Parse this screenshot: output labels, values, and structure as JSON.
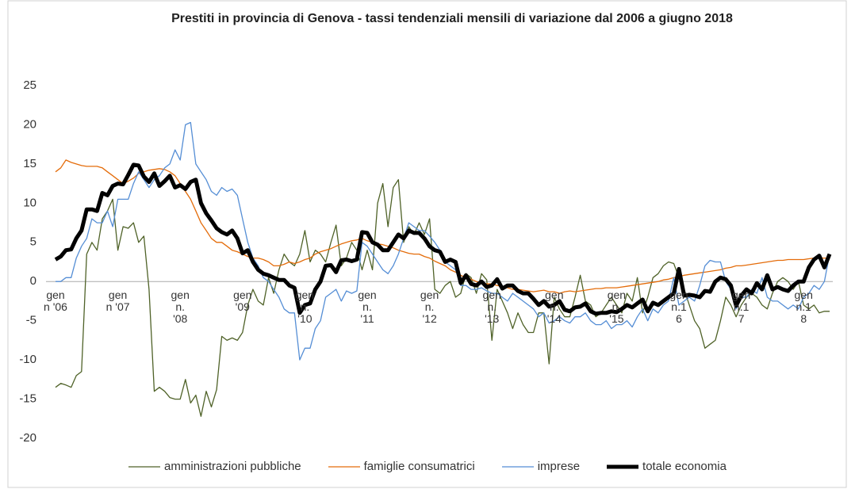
{
  "chart_data": {
    "type": "line",
    "title": "Prestiti in provincia di Genova - tassi tendenziali mensili di variazione dal 2006 a giugno 2018",
    "categories": [
      "gen\nn '06",
      null,
      null,
      null,
      null,
      null,
      null,
      null,
      null,
      null,
      null,
      null,
      "gen\nn '07",
      null,
      null,
      null,
      null,
      null,
      null,
      null,
      null,
      null,
      null,
      null,
      "gen\nn.\n'08",
      null,
      null,
      null,
      null,
      null,
      null,
      null,
      null,
      null,
      null,
      null,
      "gen\n'09",
      null,
      null,
      null,
      null,
      null,
      null,
      null,
      null,
      null,
      null,
      null,
      "gen\nn.\n'10",
      null,
      null,
      null,
      null,
      null,
      null,
      null,
      null,
      null,
      null,
      null,
      "gen\nn.\n'11",
      null,
      null,
      null,
      null,
      null,
      null,
      null,
      null,
      null,
      null,
      null,
      "gen\nn.\n'12",
      null,
      null,
      null,
      null,
      null,
      null,
      null,
      null,
      null,
      null,
      null,
      "gen\nn.\n'13",
      null,
      null,
      null,
      null,
      null,
      null,
      null,
      null,
      null,
      null,
      null,
      "gen\nn.\n'14",
      null,
      null,
      null,
      null,
      null,
      null,
      null,
      null,
      null,
      null,
      null,
      "gen\nn.\n'15",
      null,
      null,
      null,
      null,
      null,
      null,
      null,
      null,
      null,
      null,
      null,
      "gen\nn.1\n6",
      null,
      null,
      null,
      null,
      null,
      null,
      null,
      null,
      null,
      null,
      null,
      "gen\nn.1\n7",
      null,
      null,
      null,
      null,
      null,
      null,
      null,
      null,
      null,
      null,
      null,
      "gen\nn.1\n8",
      null,
      null,
      null,
      null,
      null
    ],
    "series": [
      {
        "name": "amministrazioni pubbliche",
        "color": "#4f6228",
        "width": 1.3,
        "values": [
          -13.5,
          -13,
          -13.2,
          -13.5,
          -12,
          -11.5,
          3.5,
          5,
          4,
          8,
          9,
          10.5,
          4,
          7,
          6.8,
          7.5,
          5,
          5.8,
          -1,
          -14,
          -13.5,
          -14,
          -14.8,
          -15,
          -15,
          -12.5,
          -15.5,
          -14.5,
          -17.2,
          -14,
          -16,
          -13.8,
          -7,
          -7.5,
          -7.2,
          -7.5,
          -6.5,
          -3,
          -1,
          -2.5,
          -3,
          0.5,
          -1.5,
          1.5,
          3.5,
          2.5,
          2,
          3.5,
          6.5,
          2.5,
          4,
          3.5,
          2.5,
          5,
          7.2,
          2,
          3,
          5,
          4,
          1.5,
          4,
          1.5,
          10,
          12.5,
          7,
          12,
          13,
          5,
          7,
          6,
          7.5,
          6,
          8,
          -1,
          -1.5,
          -0.5,
          0,
          -2,
          -1.5,
          1,
          0.5,
          -1.5,
          1,
          0.2,
          -7.5,
          -1,
          -2.5,
          -4,
          -6,
          -4,
          -5.5,
          -6.5,
          -6.5,
          -4,
          -4,
          -10.5,
          -2,
          -3.5,
          -4.5,
          -4.5,
          -2,
          0.8,
          -2.5,
          -3,
          -4.5,
          -4,
          -3,
          -2,
          -3,
          -4,
          -1.5,
          -2.5,
          0.5,
          -4,
          -2,
          0.5,
          1,
          2,
          2.5,
          2.3,
          0.5,
          -1,
          -3,
          -5,
          -6,
          -8.5,
          -8,
          -7.5,
          -5,
          -2,
          -3,
          -4.5,
          -3,
          -2,
          -1.5,
          -2,
          -3,
          -3.5,
          -1.5,
          0,
          0.5,
          0,
          -1,
          0,
          -3,
          -3.5,
          -3,
          -4,
          -3.8,
          -3.8
        ]
      },
      {
        "name": "famiglie consumatrici",
        "color": "#e46c0a",
        "width": 1.3,
        "values": [
          14,
          14.5,
          15.5,
          15.2,
          15,
          14.8,
          14.7,
          14.7,
          14.7,
          14.5,
          14,
          13.5,
          13,
          12.5,
          12.8,
          13.2,
          13.8,
          14,
          14.2,
          14.3,
          14.4,
          14.3,
          14,
          13.5,
          12.5,
          11.5,
          10.5,
          9,
          7.5,
          6.5,
          5.5,
          5,
          5,
          4.5,
          4,
          3.8,
          3.5,
          3.2,
          3,
          3,
          2.8,
          2.5,
          2,
          2,
          2.2,
          2.5,
          2.3,
          2.5,
          2.8,
          3,
          3.5,
          3.8,
          4,
          4.2,
          4.5,
          4.8,
          5,
          5.2,
          5.3,
          5.5,
          5.2,
          5,
          4.8,
          4.7,
          4.5,
          4.3,
          4,
          3.8,
          3.6,
          3.5,
          3.5,
          3.2,
          3,
          2.6,
          2.3,
          2,
          1.5,
          1.2,
          0.8,
          0.5,
          0.3,
          0,
          -0.2,
          -0.3,
          -0.3,
          -0.5,
          -0.6,
          -0.8,
          -1,
          -1,
          -1.1,
          -1.2,
          -1.3,
          -1.2,
          -1.1,
          -1.3,
          -1.3,
          -1.5,
          -1.3,
          -1.2,
          -1.3,
          -1.2,
          -1.1,
          -1,
          -0.9,
          -0.9,
          -0.8,
          -0.8,
          -0.8,
          -0.7,
          -0.6,
          -0.5,
          -0.4,
          -0.3,
          -0.2,
          -0.1,
          0,
          0.2,
          0.3,
          0.5,
          0.6,
          0.8,
          0.9,
          1,
          1.1,
          1.2,
          1.3,
          1.4,
          1.5,
          1.7,
          1.8,
          2,
          2,
          2.1,
          2.2,
          2.3,
          2.4,
          2.5,
          2.6,
          2.7,
          2.7,
          2.8,
          2.8,
          2.8,
          2.8,
          2.9,
          3,
          3,
          3,
          3
        ]
      },
      {
        "name": "imprese",
        "color": "#558ed5",
        "width": 1.3,
        "values": [
          0,
          0,
          0.5,
          0.5,
          3,
          4.5,
          5.5,
          8,
          7.5,
          7.5,
          9,
          7,
          10.5,
          10.5,
          10.5,
          12.5,
          14,
          13,
          12,
          13,
          13.5,
          14.5,
          15,
          16.8,
          15.5,
          20,
          20.3,
          15,
          14,
          13,
          11.5,
          11,
          12,
          11.5,
          11.8,
          11,
          8,
          5,
          3,
          2,
          0.5,
          0,
          -1,
          -2,
          -3.5,
          -4,
          -4,
          -10,
          -8.5,
          -8.5,
          -6,
          -5,
          -2,
          -1.5,
          -1,
          -2.5,
          -1.2,
          -1.5,
          -1.2,
          5,
          4.5,
          3.5,
          2.5,
          1.5,
          1,
          2,
          3.5,
          5.5,
          7.5,
          7,
          6.5,
          6.5,
          5.8,
          5,
          4,
          2.5,
          2,
          1.5,
          -0.5,
          -0.5,
          -1,
          -1,
          -0.8,
          -1.2,
          -1.5,
          -1.5,
          -2,
          -2.5,
          -1.5,
          -2,
          -2.5,
          -3,
          -3.5,
          -4.5,
          -4,
          -5.3,
          -5,
          -4.5,
          -5,
          -5.3,
          -4.5,
          -4.5,
          -4,
          -5,
          -5.5,
          -5.5,
          -5,
          -6,
          -5.5,
          -5.5,
          -5,
          -5.8,
          -4.5,
          -3.5,
          -5,
          -3.5,
          -4,
          -3,
          -2.5,
          0.5,
          -3,
          -2.5,
          -2,
          -2.5,
          -0.5,
          2,
          2.7,
          2.5,
          2.5,
          0,
          -1,
          -3.5,
          -2,
          -2,
          -1,
          -1.5,
          0.5,
          -2,
          -2.5,
          -2.5,
          -3,
          -3.5,
          -3,
          -3.5,
          -2,
          -1.5,
          -0.5,
          -1,
          0,
          3.5
        ]
      },
      {
        "name": "totale economia",
        "color": "#000000",
        "width": 5,
        "values": [
          2.8,
          3.2,
          4,
          4.1,
          5.5,
          6.5,
          9.2,
          9.2,
          9,
          11.3,
          11,
          12.2,
          12.5,
          12.4,
          13.6,
          14.9,
          14.8,
          13.4,
          12.7,
          13.8,
          12.2,
          12.8,
          13.5,
          12,
          12.3,
          11.8,
          12.7,
          13,
          10,
          8.7,
          7.8,
          6.8,
          6.3,
          6,
          6.5,
          5.5,
          3.6,
          4,
          2.5,
          1.5,
          1,
          0.8,
          0.5,
          0.2,
          0.2,
          -0.5,
          -0.8,
          -4,
          -3,
          -2.8,
          -1,
          0,
          2,
          2.1,
          1.2,
          2.7,
          2.8,
          2.6,
          2.8,
          6.3,
          6.2,
          5,
          4.7,
          4,
          4,
          5,
          6,
          5.5,
          6.5,
          6.2,
          6.2,
          5.5,
          4.5,
          4,
          3.8,
          2.5,
          2.8,
          2.5,
          -0.2,
          0.8,
          -0.3,
          -0.5,
          0,
          -0.7,
          -0.5,
          0.3,
          -0.9,
          -0.5,
          -0.5,
          -1.2,
          -1.5,
          -1.5,
          -2.2,
          -3,
          -2.5,
          -3.2,
          -3,
          -2.5,
          -3.6,
          -3.8,
          -3.3,
          -3.2,
          -2.8,
          -3.8,
          -4.1,
          -4,
          -4,
          -3.8,
          -3.9,
          -3.5,
          -3,
          -3.3,
          -2.8,
          -2.3,
          -3.8,
          -2.7,
          -3,
          -2.5,
          -2,
          -1.5,
          1.6,
          -1.8,
          -1.7,
          -1.8,
          -2,
          -1.2,
          -1.3,
          0,
          0.5,
          0.3,
          -0.5,
          -3.1,
          -1.8,
          -1,
          -1.5,
          -0.2,
          -1,
          0.8,
          -1,
          -0.7,
          -1,
          -1.2,
          -0.5,
          0,
          0,
          1.8,
          2.8,
          3.3,
          1.8,
          3.5
        ]
      }
    ],
    "ylim": [
      -20,
      25
    ],
    "yticks": [
      -20,
      -15,
      -10,
      -5,
      0,
      5,
      10,
      15,
      20,
      25
    ],
    "grid": false,
    "legend": "bottom"
  }
}
